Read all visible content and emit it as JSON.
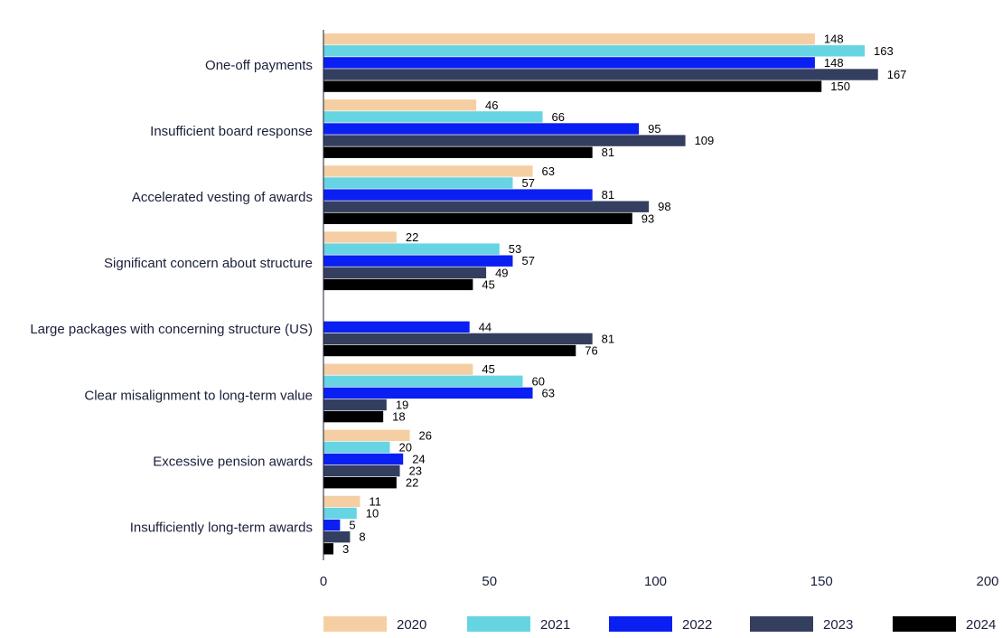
{
  "chart_data": {
    "type": "bar",
    "orientation": "horizontal",
    "title": "",
    "xlabel": "",
    "ylabel": "",
    "xlim": [
      0,
      200
    ],
    "xticks": [
      0,
      50,
      100,
      150,
      200
    ],
    "grid": false,
    "legend_position": "bottom",
    "categories": [
      "One-off payments",
      "Insufficient board response ",
      "Accelerated vesting of awards",
      "Significant concern about structure",
      "Large packages with concerning structure (US)",
      "Clear misalignment to long-term value",
      "Excessive pension awards",
      "Insufficiently long-term awards"
    ],
    "series": [
      {
        "name": "2020",
        "color": "#f5cfa3",
        "values": [
          148,
          46,
          63,
          22,
          null,
          45,
          26,
          11
        ]
      },
      {
        "name": "2021",
        "color": "#66d4e3",
        "values": [
          163,
          66,
          57,
          53,
          null,
          60,
          20,
          10
        ]
      },
      {
        "name": "2022",
        "color": "#0a1ff2",
        "values": [
          148,
          95,
          81,
          57,
          44,
          63,
          24,
          5
        ]
      },
      {
        "name": "2023",
        "color": "#343f60",
        "values": [
          167,
          109,
          98,
          49,
          81,
          19,
          23,
          8
        ]
      },
      {
        "name": "2024",
        "color": "#000000",
        "values": [
          150,
          81,
          93,
          45,
          76,
          18,
          22,
          3
        ]
      }
    ]
  }
}
